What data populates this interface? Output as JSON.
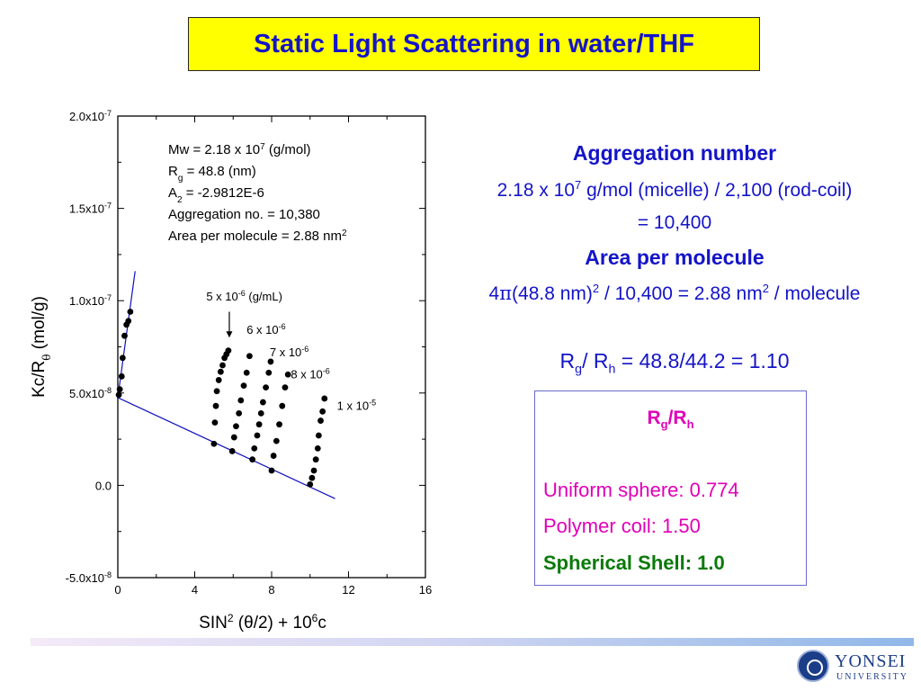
{
  "slide": {
    "title": "Static Light Scattering in water/THF",
    "aggregation_heading": "Aggregation number",
    "aggregation_line1": {
      "a": "2.18 x 10",
      "a_sup": "7",
      "b": " g/mol (micelle) / 2,100 (rod-coil)"
    },
    "aggregation_line2": "= 10,400",
    "area_heading": "Area per molecule",
    "area_line": {
      "a": "4",
      "pi": "π",
      "b": "(48.8 nm)",
      "b_sup": "2",
      "c": " / 10,400 = 2.88 nm",
      "c_sup": "2",
      "d": " / molecule"
    },
    "ratio_line": {
      "a": "R",
      "a_sub": "g",
      "b": "/ R",
      "b_sub": "h",
      "c": " = 48.8/44.2 = 1.10"
    },
    "ratio_box": {
      "heading": {
        "a": "R",
        "a_sub": "g",
        "b": "/R",
        "b_sub": "h"
      },
      "uniform_sphere": "Uniform sphere: 0.774",
      "polymer_coil": "Polymer coil: 1.50",
      "spherical_shell": "Spherical Shell: 1.0"
    },
    "logo": {
      "name": "YONSEI",
      "sub": "UNIVERSITY"
    },
    "colors": {
      "title_bg": "#ffff00",
      "title_text": "#1414c8",
      "accent_blue": "#1414c8",
      "magenta": "#e000b8",
      "green": "#0a7a0a",
      "fit_line": "#1010c0"
    }
  },
  "chart_data": {
    "type": "scatter",
    "xlabel": {
      "a": "SIN",
      "a_sup": "2",
      "b": " (θ/2) + 10",
      "b_sup": "6",
      "c": "c"
    },
    "ylabel": {
      "a": "Kc/R",
      "a_sub": "θ",
      "b": " (mol/g)"
    },
    "xlim": [
      0,
      16
    ],
    "ylim": [
      -5e-08,
      2e-07
    ],
    "x_ticks": [
      0,
      4,
      8,
      12,
      16
    ],
    "x_tick_labels": [
      "0",
      "4",
      "8",
      "12",
      "16"
    ],
    "y_ticks": [
      -5e-08,
      0,
      5e-08,
      1e-07,
      1.5e-07,
      2e-07
    ],
    "y_tick_labels": [
      {
        "a": "-5.0x10",
        "sup": "-8"
      },
      {
        "a": "0.0",
        "sup": ""
      },
      {
        "a": "5.0x10",
        "sup": "-8"
      },
      {
        "a": "1.0x10",
        "sup": "-7"
      },
      {
        "a": "1.5x10",
        "sup": "-7"
      },
      {
        "a": "2.0x10",
        "sup": "-7"
      }
    ],
    "info_lines": [
      {
        "a": "Mw = 2.18 x 10",
        "sup": "7",
        "b": " (g/mol)"
      },
      {
        "a": "R",
        "sub": "g",
        "b": " = 48.8 (nm)"
      },
      {
        "a": "A",
        "sub": "2",
        "b": " = -2.9812E-6"
      },
      {
        "a": "Aggregation no. =  10,380"
      },
      {
        "a": "Area per molecule = 2.88 nm",
        "sup": "2"
      }
    ],
    "concentration_labels": [
      {
        "a": "5 x 10",
        "sup": "-6",
        "b": " (g/mL)",
        "x": 4.6,
        "y": 1e-07
      },
      {
        "a": "6 x 10",
        "sup": "-6",
        "b": "",
        "x": 6.7,
        "y": 8.2e-08
      },
      {
        "a": "7 x 10",
        "sup": "-6",
        "b": "",
        "x": 7.9,
        "y": 7e-08
      },
      {
        "a": "8 x 10",
        "sup": "-6",
        "b": "",
        "x": 9.0,
        "y": 5.8e-08
      },
      {
        "a": "1 x 10",
        "sup": "-5",
        "b": "",
        "x": 11.4,
        "y": 4.1e-08
      }
    ],
    "arrow": {
      "x": 5.8,
      "y_from": 9.4e-08,
      "y_to": 8e-08
    },
    "fit_lines": [
      {
        "name": "zero-angle extrapolation",
        "x": [
          0,
          11.3
        ],
        "y": [
          4.75e-08,
          -7.2e-09
        ]
      },
      {
        "name": "zero-concentration extrapolation",
        "x": [
          0,
          0.9
        ],
        "y": [
          4.75e-08,
          1.16e-07
        ]
      }
    ],
    "series": [
      {
        "name": "c = 0",
        "x": [
          0.05,
          0.1,
          0.2,
          0.25,
          0.35,
          0.45,
          0.55,
          0.65
        ],
        "y": [
          4.9e-08,
          5.2e-08,
          5.9e-08,
          6.9e-08,
          8.1e-08,
          8.7e-08,
          8.9e-08,
          9.4e-08
        ]
      },
      {
        "name": "5 x 10^-6",
        "x": [
          5.0,
          5.05,
          5.1,
          5.15,
          5.25,
          5.35,
          5.45,
          5.55,
          5.65,
          5.75
        ],
        "y": [
          2.25e-08,
          3.4e-08,
          4.3e-08,
          5.1e-08,
          5.7e-08,
          6.15e-08,
          6.5e-08,
          6.9e-08,
          7.1e-08,
          7.3e-08
        ]
      },
      {
        "name": "6 x 10^-6",
        "x": [
          5.95,
          6.05,
          6.15,
          6.3,
          6.4,
          6.55,
          6.7,
          6.85
        ],
        "y": [
          1.85e-08,
          2.6e-08,
          3.2e-08,
          3.9e-08,
          4.6e-08,
          5.4e-08,
          6.1e-08,
          7e-08
        ]
      },
      {
        "name": "7 x 10^-6",
        "x": [
          7.0,
          7.1,
          7.25,
          7.35,
          7.45,
          7.55,
          7.7,
          7.85,
          7.95
        ],
        "y": [
          1.4e-08,
          2e-08,
          2.7e-08,
          3.3e-08,
          3.9e-08,
          4.5e-08,
          5.3e-08,
          6.1e-08,
          6.7e-08
        ]
      },
      {
        "name": "8 x 10^-6",
        "x": [
          8.0,
          8.1,
          8.25,
          8.4,
          8.55,
          8.7,
          8.85
        ],
        "y": [
          8e-09,
          1.6e-08,
          2.4e-08,
          3.3e-08,
          4.3e-08,
          5.3e-08,
          6e-08
        ]
      },
      {
        "name": "1 x 10^-5",
        "x": [
          10.0,
          10.1,
          10.2,
          10.3,
          10.4,
          10.45,
          10.55,
          10.65,
          10.75
        ],
        "y": [
          5e-10,
          4e-09,
          8e-09,
          1.4e-08,
          2e-08,
          2.7e-08,
          3.5e-08,
          4e-08,
          4.7e-08
        ]
      }
    ]
  }
}
